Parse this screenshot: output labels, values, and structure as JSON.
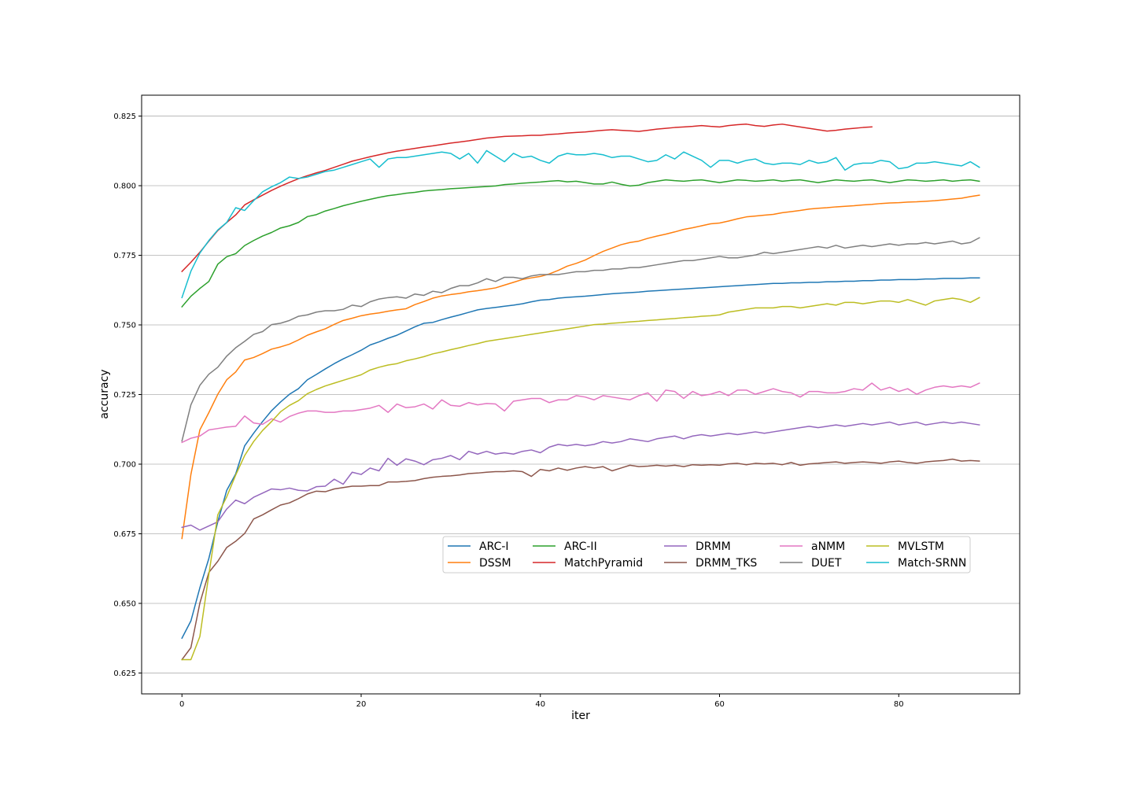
{
  "chart_data": {
    "type": "line",
    "title": "",
    "xlabel": "iter",
    "ylabel": "accuracy",
    "xlim": [
      -4.5,
      93.5
    ],
    "ylim": [
      0.6175,
      0.8325
    ],
    "xticks": [
      0,
      20,
      40,
      60,
      80
    ],
    "xtick_labels": [
      "0",
      "20",
      "40",
      "60",
      "80"
    ],
    "yticks": [
      0.625,
      0.65,
      0.675,
      0.7,
      0.725,
      0.75,
      0.775,
      0.8,
      0.825
    ],
    "ytick_labels": [
      "0.625",
      "0.650",
      "0.675",
      "0.700",
      "0.725",
      "0.750",
      "0.775",
      "0.800",
      "0.825"
    ],
    "grid": "horizontal",
    "legend_position": "lower-center",
    "x_step": 1,
    "series": [
      {
        "name": "ARC-I",
        "color": "#1f77b4",
        "values": [
          0.6375,
          0.6437,
          0.6556,
          0.6661,
          0.6793,
          0.6906,
          0.6965,
          0.7066,
          0.7111,
          0.7153,
          0.7192,
          0.7223,
          0.7251,
          0.7271,
          0.7303,
          0.7322,
          0.7342,
          0.7361,
          0.7378,
          0.7393,
          0.7409,
          0.7428,
          0.7439,
          0.7452,
          0.7463,
          0.7478,
          0.7493,
          0.7506,
          0.7509,
          0.7519,
          0.7528,
          0.7536,
          0.7545,
          0.7554,
          0.7559,
          0.7563,
          0.7567,
          0.7571,
          0.7576,
          0.7583,
          0.7589,
          0.7591,
          0.7596,
          0.7599,
          0.7601,
          0.7603,
          0.7606,
          0.7609,
          0.7612,
          0.7614,
          0.7616,
          0.7618,
          0.7621,
          0.7623,
          0.7625,
          0.7627,
          0.7629,
          0.7631,
          0.7633,
          0.7635,
          0.7637,
          0.7639,
          0.7641,
          0.7643,
          0.7645,
          0.7647,
          0.7649,
          0.7649,
          0.7651,
          0.7651,
          0.7653,
          0.7653,
          0.7655,
          0.7655,
          0.7657,
          0.7657,
          0.7659,
          0.7659,
          0.7661,
          0.7661,
          0.7663,
          0.7663,
          0.7663,
          0.7665,
          0.7665,
          0.7667,
          0.7667,
          0.7667,
          0.7669,
          0.7669
        ]
      },
      {
        "name": "DSSM",
        "color": "#ff7f0e",
        "values": [
          0.6733,
          0.6963,
          0.7123,
          0.7185,
          0.7251,
          0.7303,
          0.7331,
          0.7374,
          0.7383,
          0.7397,
          0.7413,
          0.7421,
          0.7431,
          0.7446,
          0.7463,
          0.7475,
          0.7486,
          0.7502,
          0.7516,
          0.7524,
          0.7533,
          0.7539,
          0.7543,
          0.7549,
          0.7554,
          0.7558,
          0.7573,
          0.7584,
          0.7596,
          0.7604,
          0.7609,
          0.7613,
          0.7619,
          0.7623,
          0.7628,
          0.7633,
          0.7643,
          0.7653,
          0.7663,
          0.7669,
          0.7674,
          0.7683,
          0.7696,
          0.7711,
          0.7721,
          0.7733,
          0.7749,
          0.7764,
          0.7776,
          0.7788,
          0.7796,
          0.7801,
          0.7811,
          0.7819,
          0.7826,
          0.7834,
          0.7843,
          0.7849,
          0.7856,
          0.7863,
          0.7866,
          0.7873,
          0.7881,
          0.7888,
          0.7891,
          0.7894,
          0.7897,
          0.7903,
          0.7907,
          0.7911,
          0.7916,
          0.7919,
          0.7921,
          0.7924,
          0.7926,
          0.7928,
          0.7931,
          0.7933,
          0.7936,
          0.7938,
          0.7939,
          0.7941,
          0.7942,
          0.7944,
          0.7946,
          0.7949,
          0.7952,
          0.7955,
          0.7961,
          0.7966
        ]
      },
      {
        "name": "ARC-II",
        "color": "#2ca02c",
        "values": [
          0.7565,
          0.7603,
          0.7631,
          0.7656,
          0.7718,
          0.7745,
          0.7756,
          0.7785,
          0.7803,
          0.7819,
          0.7832,
          0.7848,
          0.7856,
          0.7868,
          0.7889,
          0.7896,
          0.7909,
          0.7918,
          0.7928,
          0.7936,
          0.7944,
          0.7951,
          0.7958,
          0.7964,
          0.7968,
          0.7973,
          0.7976,
          0.7981,
          0.7984,
          0.7986,
          0.7989,
          0.7991,
          0.7993,
          0.7995,
          0.7997,
          0.7999,
          0.8004,
          0.8006,
          0.8009,
          0.8011,
          0.8013,
          0.8016,
          0.8018,
          0.8014,
          0.8016,
          0.8011,
          0.8006,
          0.8006,
          0.8013,
          0.8005,
          0.7999,
          0.8002,
          0.8011,
          0.8016,
          0.8021,
          0.8018,
          0.8016,
          0.8019,
          0.8021,
          0.8016,
          0.8011,
          0.8016,
          0.8021,
          0.8019,
          0.8016,
          0.8018,
          0.8021,
          0.8016,
          0.8019,
          0.8021,
          0.8016,
          0.8011,
          0.8016,
          0.8021,
          0.8018,
          0.8016,
          0.8019,
          0.8021,
          0.8016,
          0.8011,
          0.8016,
          0.8021,
          0.8019,
          0.8016,
          0.8018,
          0.8021,
          0.8016,
          0.8019,
          0.8021,
          0.8016
        ]
      },
      {
        "name": "MatchPyramid",
        "color": "#d62728",
        "values": [
          0.7692,
          0.7725,
          0.7761,
          0.7801,
          0.7839,
          0.7868,
          0.7895,
          0.7931,
          0.7949,
          0.7966,
          0.7983,
          0.7998,
          0.8012,
          0.8025,
          0.8036,
          0.8046,
          0.8055,
          0.8066,
          0.8077,
          0.8088,
          0.8096,
          0.8104,
          0.8111,
          0.8118,
          0.8124,
          0.8129,
          0.8134,
          0.8139,
          0.8143,
          0.8148,
          0.8153,
          0.8157,
          0.8161,
          0.8166,
          0.8171,
          0.8174,
          0.8177,
          0.8178,
          0.8179,
          0.8181,
          0.8181,
          0.8184,
          0.8186,
          0.8189,
          0.8191,
          0.8193,
          0.8196,
          0.8199,
          0.8201,
          0.8199,
          0.8197,
          0.8195,
          0.8199,
          0.8203,
          0.8206,
          0.8209,
          0.8211,
          0.8213,
          0.8216,
          0.8213,
          0.8211,
          0.8216,
          0.8219,
          0.8221,
          0.8216,
          0.8213,
          0.8218,
          0.8221,
          0.8216,
          0.8211,
          0.8206,
          0.8201,
          0.8196,
          0.8199,
          0.8203,
          0.8206,
          0.8209,
          0.8211
        ]
      },
      {
        "name": "DRMM",
        "color": "#9467bd",
        "values": [
          0.6773,
          0.6781,
          0.6763,
          0.6778,
          0.6793,
          0.6839,
          0.6871,
          0.6858,
          0.6881,
          0.6896,
          0.6911,
          0.6908,
          0.6914,
          0.6906,
          0.6904,
          0.6919,
          0.6921,
          0.6946,
          0.6928,
          0.6971,
          0.6963,
          0.6986,
          0.6976,
          0.7021,
          0.6996,
          0.7019,
          0.7011,
          0.6998,
          0.7016,
          0.7021,
          0.7031,
          0.7016,
          0.7046,
          0.7036,
          0.7046,
          0.7036,
          0.7041,
          0.7036,
          0.7046,
          0.7051,
          0.7041,
          0.7061,
          0.7071,
          0.7066,
          0.7071,
          0.7066,
          0.7071,
          0.7081,
          0.7076,
          0.7081,
          0.7091,
          0.7086,
          0.7081,
          0.7091,
          0.7096,
          0.7101,
          0.7091,
          0.7101,
          0.7106,
          0.7101,
          0.7106,
          0.7111,
          0.7106,
          0.7111,
          0.7116,
          0.7111,
          0.7116,
          0.7121,
          0.7126,
          0.7131,
          0.7136,
          0.7131,
          0.7136,
          0.7141,
          0.7136,
          0.7141,
          0.7146,
          0.7141,
          0.7146,
          0.7151,
          0.7141,
          0.7146,
          0.7151,
          0.7141,
          0.7146,
          0.7151,
          0.7146,
          0.7151,
          0.7146,
          0.7141
        ]
      },
      {
        "name": "DRMM_TKS",
        "color": "#8c564b",
        "values": [
          0.6298,
          0.6341,
          0.6501,
          0.6611,
          0.6651,
          0.6701,
          0.6723,
          0.6751,
          0.6803,
          0.6818,
          0.6836,
          0.6853,
          0.6861,
          0.6876,
          0.6893,
          0.6903,
          0.6901,
          0.6911,
          0.6916,
          0.6921,
          0.6921,
          0.6923,
          0.6923,
          0.6936,
          0.6936,
          0.6938,
          0.6941,
          0.6948,
          0.6953,
          0.6956,
          0.6958,
          0.6961,
          0.6966,
          0.6968,
          0.6971,
          0.6973,
          0.6973,
          0.6976,
          0.6973,
          0.6956,
          0.6981,
          0.6976,
          0.6986,
          0.6978,
          0.6986,
          0.6991,
          0.6986,
          0.6991,
          0.6976,
          0.6986,
          0.6996,
          0.6991,
          0.6993,
          0.6996,
          0.6993,
          0.6996,
          0.6991,
          0.6998,
          0.6996,
          0.6998,
          0.6996,
          0.7001,
          0.7003,
          0.6998,
          0.7003,
          0.7001,
          0.7003,
          0.6998,
          0.7006,
          0.6996,
          0.7001,
          0.7003,
          0.7006,
          0.7008,
          0.7003,
          0.7006,
          0.7008,
          0.7006,
          0.7003,
          0.7008,
          0.7011,
          0.7006,
          0.7003,
          0.7008,
          0.7011,
          0.7013,
          0.7018,
          0.7011,
          0.7013,
          0.7011
        ]
      },
      {
        "name": "aNMM",
        "color": "#e377c2",
        "values": [
          0.7078,
          0.7093,
          0.7101,
          0.7123,
          0.7128,
          0.7133,
          0.7136,
          0.7173,
          0.7148,
          0.7143,
          0.7163,
          0.7151,
          0.7171,
          0.7183,
          0.7191,
          0.7191,
          0.7186,
          0.7186,
          0.7191,
          0.7191,
          0.7196,
          0.7201,
          0.7211,
          0.7186,
          0.7216,
          0.7203,
          0.7206,
          0.7216,
          0.7198,
          0.7231,
          0.7211,
          0.7208,
          0.7221,
          0.7213,
          0.7218,
          0.7216,
          0.7191,
          0.7226,
          0.7231,
          0.7236,
          0.7236,
          0.7221,
          0.7231,
          0.7231,
          0.7246,
          0.7241,
          0.7231,
          0.7246,
          0.7241,
          0.7236,
          0.7231,
          0.7246,
          0.7256,
          0.7226,
          0.7266,
          0.7261,
          0.7236,
          0.7261,
          0.7246,
          0.7251,
          0.7261,
          0.7246,
          0.7266,
          0.7266,
          0.7251,
          0.7261,
          0.7271,
          0.7261,
          0.7256,
          0.7241,
          0.7261,
          0.7261,
          0.7256,
          0.7256,
          0.7261,
          0.7271,
          0.7266,
          0.7291,
          0.7266,
          0.7276,
          0.7261,
          0.7271,
          0.7251,
          0.7266,
          0.7276,
          0.7281,
          0.7276,
          0.7281,
          0.7276,
          0.7291
        ]
      },
      {
        "name": "DUET",
        "color": "#7f7f7f",
        "values": [
          0.7083,
          0.7213,
          0.7283,
          0.7323,
          0.7348,
          0.7388,
          0.7418,
          0.7441,
          0.7466,
          0.7476,
          0.7501,
          0.7506,
          0.7516,
          0.7531,
          0.7536,
          0.7546,
          0.7551,
          0.7551,
          0.7556,
          0.7571,
          0.7566,
          0.7583,
          0.7593,
          0.7598,
          0.7601,
          0.7596,
          0.7611,
          0.7606,
          0.7621,
          0.7616,
          0.7631,
          0.7641,
          0.7641,
          0.7651,
          0.7666,
          0.7656,
          0.7671,
          0.7671,
          0.7666,
          0.7676,
          0.7681,
          0.7681,
          0.7681,
          0.7686,
          0.7691,
          0.7691,
          0.7696,
          0.7696,
          0.7701,
          0.7701,
          0.7706,
          0.7706,
          0.7711,
          0.7716,
          0.7721,
          0.7726,
          0.7731,
          0.7731,
          0.7736,
          0.7741,
          0.7746,
          0.7741,
          0.7741,
          0.7746,
          0.7751,
          0.7761,
          0.7756,
          0.7761,
          0.7766,
          0.7771,
          0.7776,
          0.7781,
          0.7776,
          0.7786,
          0.7776,
          0.7781,
          0.7786,
          0.7781,
          0.7786,
          0.7791,
          0.7786,
          0.7791,
          0.7791,
          0.7796,
          0.7791,
          0.7796,
          0.7801,
          0.7791,
          0.7796,
          0.7813
        ]
      },
      {
        "name": "MVLSTM",
        "color": "#bcbd22",
        "values": [
          0.6298,
          0.6298,
          0.6381,
          0.6603,
          0.6818,
          0.6883,
          0.6961,
          0.7031,
          0.7081,
          0.7121,
          0.7153,
          0.7188,
          0.7211,
          0.7228,
          0.7253,
          0.7268,
          0.7281,
          0.7291,
          0.7301,
          0.7311,
          0.7321,
          0.7338,
          0.7348,
          0.7356,
          0.7361,
          0.7371,
          0.7378,
          0.7386,
          0.7396,
          0.7403,
          0.7411,
          0.7418,
          0.7426,
          0.7433,
          0.7441,
          0.7446,
          0.7451,
          0.7456,
          0.7461,
          0.7466,
          0.7471,
          0.7476,
          0.7481,
          0.7486,
          0.7491,
          0.7496,
          0.7501,
          0.7503,
          0.7506,
          0.7508,
          0.7511,
          0.7513,
          0.7516,
          0.7518,
          0.7521,
          0.7523,
          0.7526,
          0.7528,
          0.7531,
          0.7533,
          0.7536,
          0.7546,
          0.7551,
          0.7556,
          0.7561,
          0.7561,
          0.7561,
          0.7566,
          0.7566,
          0.7561,
          0.7566,
          0.7571,
          0.7576,
          0.7571,
          0.7581,
          0.7581,
          0.7576,
          0.7581,
          0.7586,
          0.7586,
          0.7581,
          0.7591,
          0.7581,
          0.7571,
          0.7586,
          0.7591,
          0.7596,
          0.7591,
          0.7581,
          0.7598
        ]
      },
      {
        "name": "Match-SRNN",
        "color": "#17becf",
        "values": [
          0.7598,
          0.7693,
          0.7758,
          0.7803,
          0.7841,
          0.7868,
          0.7921,
          0.7911,
          0.7946,
          0.7978,
          0.7996,
          0.8011,
          0.8031,
          0.8026,
          0.8031,
          0.8041,
          0.8051,
          0.8056,
          0.8066,
          0.8076,
          0.8086,
          0.8096,
          0.8066,
          0.8096,
          0.8101,
          0.8101,
          0.8106,
          0.8111,
          0.8116,
          0.8121,
          0.8116,
          0.8096,
          0.8116,
          0.8081,
          0.8126,
          0.8106,
          0.8086,
          0.8116,
          0.8101,
          0.8106,
          0.8091,
          0.8081,
          0.8106,
          0.8116,
          0.8111,
          0.8111,
          0.8116,
          0.8111,
          0.8101,
          0.8106,
          0.8106,
          0.8096,
          0.8086,
          0.8091,
          0.8111,
          0.8096,
          0.8121,
          0.8106,
          0.8091,
          0.8066,
          0.8091,
          0.8091,
          0.8081,
          0.8091,
          0.8096,
          0.8081,
          0.8076,
          0.8081,
          0.8081,
          0.8076,
          0.8091,
          0.8081,
          0.8086,
          0.8101,
          0.8056,
          0.8076,
          0.8081,
          0.8081,
          0.8091,
          0.8086,
          0.8061,
          0.8066,
          0.8081,
          0.8081,
          0.8086,
          0.8081,
          0.8076,
          0.8071,
          0.8086,
          0.8066
        ]
      }
    ]
  }
}
